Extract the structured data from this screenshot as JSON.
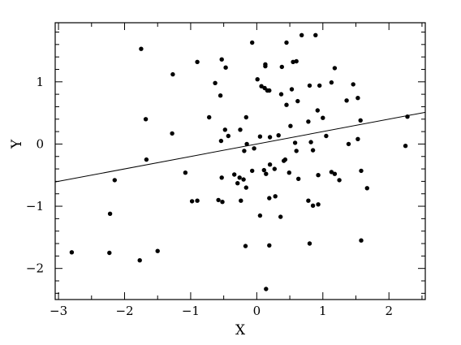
{
  "chart_data": {
    "type": "scatter",
    "title": "",
    "xlabel": "X",
    "ylabel": "Y",
    "xlim": [
      -3.05,
      2.55
    ],
    "ylim": [
      -2.5,
      1.95
    ],
    "xticks": [
      -3,
      -2,
      -1,
      0,
      1,
      2
    ],
    "xtick_labels": [
      "−3",
      "−2",
      "−1",
      "0",
      "1",
      "2"
    ],
    "yticks": [
      -2,
      -1,
      0,
      1
    ],
    "ytick_labels": [
      "−2",
      "−1",
      "0",
      "1"
    ],
    "grid": false,
    "series": [
      {
        "marker": "dot",
        "color": "#000000",
        "points": [
          [
            -1.75,
            1.53
          ],
          [
            -1.27,
            1.12
          ],
          [
            -0.9,
            1.32
          ],
          [
            -0.53,
            1.36
          ],
          [
            -0.47,
            1.23
          ],
          [
            -0.07,
            1.63
          ],
          [
            0.13,
            1.28
          ],
          [
            0.45,
            1.63
          ],
          [
            0.55,
            1.32
          ],
          [
            0.6,
            1.33
          ],
          [
            0.68,
            1.75
          ],
          [
            0.89,
            1.75
          ],
          [
            0.13,
            1.25
          ],
          [
            -0.63,
            0.98
          ],
          [
            -0.55,
            0.78
          ],
          [
            0.01,
            1.04
          ],
          [
            0.07,
            0.93
          ],
          [
            0.12,
            0.9
          ],
          [
            0.16,
            0.86
          ],
          [
            0.19,
            0.86
          ],
          [
            0.38,
            1.24
          ],
          [
            0.45,
            0.63
          ],
          [
            0.53,
            0.88
          ],
          [
            0.62,
            0.69
          ],
          [
            0.8,
            0.94
          ],
          [
            0.95,
            0.94
          ],
          [
            1.13,
            0.99
          ],
          [
            1.18,
            1.22
          ],
          [
            1.36,
            0.7
          ],
          [
            1.46,
            0.96
          ],
          [
            1.53,
            0.74
          ],
          [
            -1.68,
            0.4
          ],
          [
            -0.72,
            0.43
          ],
          [
            -0.16,
            0.43
          ],
          [
            0.37,
            0.8
          ],
          [
            0.92,
            0.54
          ],
          [
            1.0,
            0.42
          ],
          [
            1.57,
            0.38
          ],
          [
            -1.28,
            0.17
          ],
          [
            -0.48,
            0.23
          ],
          [
            -0.43,
            0.13
          ],
          [
            -0.25,
            0.23
          ],
          [
            0.05,
            0.12
          ],
          [
            0.2,
            0.11
          ],
          [
            0.33,
            0.14
          ],
          [
            0.51,
            0.29
          ],
          [
            0.58,
            0.02
          ],
          [
            0.78,
            0.36
          ],
          [
            0.82,
            0.03
          ],
          [
            0.85,
            -0.1
          ],
          [
            1.05,
            0.13
          ],
          [
            1.39,
            0.0
          ],
          [
            1.53,
            0.08
          ],
          [
            2.28,
            0.44
          ],
          [
            2.25,
            -0.03
          ],
          [
            -1.67,
            -0.25
          ],
          [
            -0.54,
            0.05
          ],
          [
            -0.19,
            -0.11
          ],
          [
            -0.15,
            0.0
          ],
          [
            -0.04,
            -0.07
          ],
          [
            0.2,
            -0.33
          ],
          [
            0.41,
            -0.27
          ],
          [
            0.43,
            -0.25
          ],
          [
            0.6,
            -0.11
          ],
          [
            0.93,
            -0.5
          ],
          [
            1.13,
            -0.45
          ],
          [
            1.58,
            -0.43
          ],
          [
            -2.15,
            -0.58
          ],
          [
            -1.08,
            -0.46
          ],
          [
            -0.53,
            -0.54
          ],
          [
            -0.34,
            -0.49
          ],
          [
            -0.26,
            -0.54
          ],
          [
            -0.2,
            -0.57
          ],
          [
            -0.29,
            -0.63
          ],
          [
            -0.07,
            -0.43
          ],
          [
            0.11,
            -0.42
          ],
          [
            0.14,
            -0.48
          ],
          [
            0.27,
            -0.4
          ],
          [
            0.49,
            -0.46
          ],
          [
            0.63,
            -0.56
          ],
          [
            1.18,
            -0.48
          ],
          [
            1.25,
            -0.58
          ],
          [
            1.67,
            -0.71
          ],
          [
            -0.98,
            -0.92
          ],
          [
            -0.9,
            -0.91
          ],
          [
            -0.58,
            -0.9
          ],
          [
            -0.52,
            -0.93
          ],
          [
            -0.24,
            -0.91
          ],
          [
            -0.16,
            -0.7
          ],
          [
            0.19,
            -0.87
          ],
          [
            0.28,
            -0.84
          ],
          [
            0.78,
            -0.91
          ],
          [
            0.85,
            -0.99
          ],
          [
            0.93,
            -0.97
          ],
          [
            -2.22,
            -1.12
          ],
          [
            0.05,
            -1.15
          ],
          [
            0.36,
            -1.17
          ],
          [
            -2.8,
            -1.74
          ],
          [
            -2.23,
            -1.75
          ],
          [
            -1.5,
            -1.72
          ],
          [
            -1.77,
            -1.87
          ],
          [
            -0.17,
            -1.64
          ],
          [
            0.19,
            -1.63
          ],
          [
            0.8,
            -1.6
          ],
          [
            1.58,
            -1.55
          ],
          [
            0.14,
            -2.33
          ]
        ]
      }
    ],
    "fit_line": {
      "slope": 0.2,
      "intercept": 0.0,
      "x_range": [
        -3.05,
        2.55
      ]
    }
  }
}
